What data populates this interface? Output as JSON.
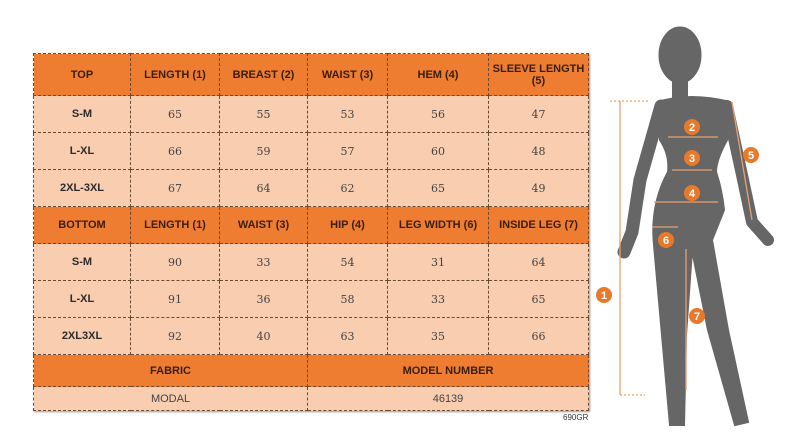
{
  "top": {
    "headers": [
      "TOP",
      "LENGTH (1)",
      "BREAST (2)",
      "WAIST (3)",
      "HEM (4)",
      "SLEEVE LENGTH (5)"
    ],
    "rows": [
      [
        "S-M",
        "65",
        "55",
        "53",
        "56",
        "47"
      ],
      [
        "L-XL",
        "66",
        "59",
        "57",
        "60",
        "48"
      ],
      [
        "2XL-3XL",
        "67",
        "64",
        "62",
        "65",
        "49"
      ]
    ]
  },
  "bottom": {
    "headers": [
      "BOTTOM",
      "LENGTH (1)",
      "WAIST (3)",
      "HIP (4)",
      "LEG WIDTH (6)",
      "INSIDE LEG (7)"
    ],
    "rows": [
      [
        "S-M",
        "90",
        "33",
        "54",
        "31",
        "64"
      ],
      [
        "L-XL",
        "91",
        "36",
        "58",
        "33",
        "65"
      ],
      [
        "2XL3XL",
        "92",
        "40",
        "63",
        "35",
        "66"
      ]
    ]
  },
  "info": {
    "fabric_label": "FABRIC",
    "fabric_value": "MODAL",
    "model_label": "MODEL NUMBER",
    "model_value": "46139"
  },
  "product_code": "690GR",
  "figure": {
    "markers": [
      "1",
      "2",
      "3",
      "4",
      "5",
      "6",
      "7"
    ]
  },
  "colors": {
    "header": "#ee7d31",
    "cell": "#f9cdb0",
    "silhouette": "#666666",
    "marker": "#e8792a"
  }
}
